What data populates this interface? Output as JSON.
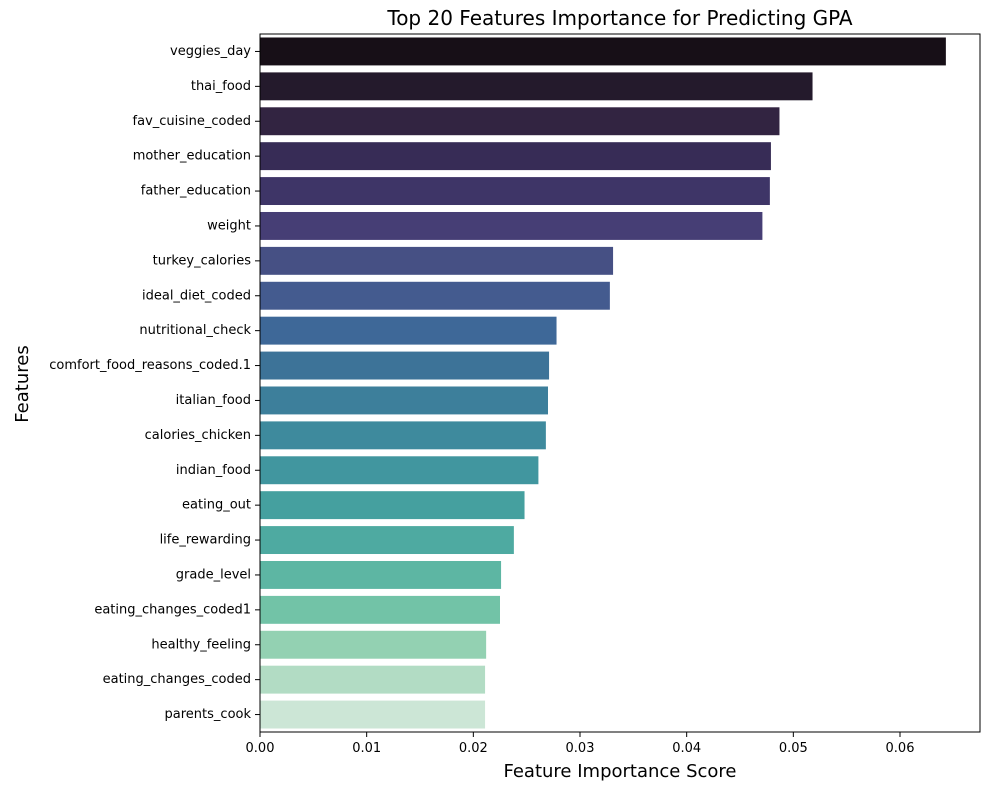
{
  "chart_data": {
    "type": "bar",
    "orientation": "horizontal",
    "title": "Top 20 Features Importance for Predicting GPA",
    "xlabel": "Feature Importance Score",
    "ylabel": "Features",
    "xlim": [
      0,
      0.0675
    ],
    "xticks": [
      "0.00",
      "0.01",
      "0.02",
      "0.03",
      "0.04",
      "0.05",
      "0.06"
    ],
    "grid": false,
    "palette": "mako",
    "categories": [
      "veggies_day",
      "thai_food",
      "fav_cuisine_coded",
      "mother_education",
      "father_education",
      "weight",
      "turkey_calories",
      "ideal_diet_coded",
      "nutritional_check",
      "comfort_food_reasons_coded.1",
      "italian_food",
      "calories_chicken",
      "indian_food",
      "eating_out",
      "life_rewarding",
      "grade_level",
      "eating_changes_coded1",
      "healthy_feeling",
      "eating_changes_coded",
      "parents_cook"
    ],
    "values": [
      0.0643,
      0.0518,
      0.0487,
      0.0479,
      0.0478,
      0.0471,
      0.0331,
      0.0328,
      0.0278,
      0.0271,
      0.027,
      0.0268,
      0.0261,
      0.0248,
      0.0238,
      0.0226,
      0.0225,
      0.0212,
      0.0211,
      0.0211
    ],
    "colors": [
      "#170f17",
      "#241a2c",
      "#322441",
      "#372c56",
      "#3e3567",
      "#463e75",
      "#465084",
      "#445b8f",
      "#3e6898",
      "#3d7398",
      "#3d7f9b",
      "#3e8a9d",
      "#41969f",
      "#45a09f",
      "#4eaaa1",
      "#5db6a3",
      "#72c3a7",
      "#93d1b2",
      "#b2dcc4",
      "#cce6d6"
    ]
  }
}
